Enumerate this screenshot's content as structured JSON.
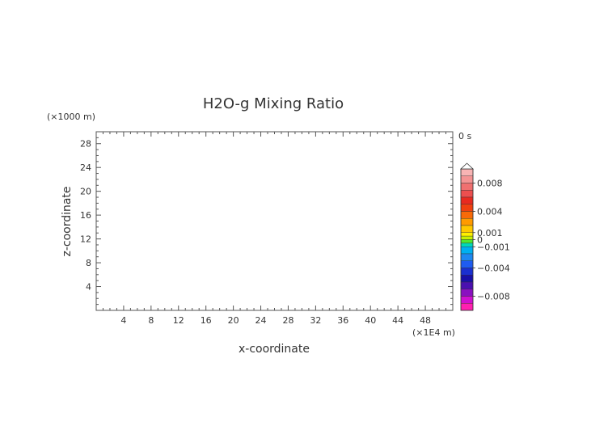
{
  "chart_data": {
    "type": "heatmap",
    "title": "H2O-g Mixing Ratio",
    "xlabel": "x-coordinate",
    "ylabel": "z-coordinate",
    "x_unit": "(×1E4 m)",
    "y_unit": "(×1000 m)",
    "time_label": "0 s",
    "xlim": [
      0,
      52
    ],
    "ylim": [
      0,
      30
    ],
    "x_ticks": [
      4,
      8,
      12,
      16,
      20,
      24,
      28,
      32,
      36,
      40,
      44,
      48
    ],
    "x_tick_labels": [
      "4",
      "8",
      "12",
      "16",
      "20",
      "24",
      "28",
      "32",
      "36",
      "40",
      "44",
      "48"
    ],
    "y_ticks": [
      4,
      8,
      12,
      16,
      20,
      24,
      28
    ],
    "y_tick_labels": [
      "4",
      "8",
      "12",
      "16",
      "20",
      "24",
      "28"
    ],
    "grid": false,
    "field_values": [],
    "colorbar": {
      "min": -0.01,
      "max": 0.01,
      "labels": [
        {
          "value": 0.008,
          "text": "0.008"
        },
        {
          "value": 0.004,
          "text": "0.004"
        },
        {
          "value": 0.001,
          "text": "0.001"
        },
        {
          "value": 0,
          "text": "0"
        },
        {
          "value": -0.001,
          "text": "−0.001"
        },
        {
          "value": -0.004,
          "text": "−0.004"
        },
        {
          "value": -0.008,
          "text": "−0.008"
        }
      ],
      "levels": [
        {
          "from": 0.009,
          "to": 0.01,
          "color": "#f8b4b4"
        },
        {
          "from": 0.008,
          "to": 0.009,
          "color": "#f49494"
        },
        {
          "from": 0.007,
          "to": 0.008,
          "color": "#f07070"
        },
        {
          "from": 0.006,
          "to": 0.007,
          "color": "#ec4f4f"
        },
        {
          "from": 0.005,
          "to": 0.006,
          "color": "#e82a20"
        },
        {
          "from": 0.004,
          "to": 0.005,
          "color": "#f04010"
        },
        {
          "from": 0.003,
          "to": 0.004,
          "color": "#f86a08"
        },
        {
          "from": 0.002,
          "to": 0.003,
          "color": "#ff9a00"
        },
        {
          "from": 0.001,
          "to": 0.002,
          "color": "#ffc800"
        },
        {
          "from": 0.0005,
          "to": 0.001,
          "color": "#fff000"
        },
        {
          "from": 0,
          "to": 0.0005,
          "color": "#c8f000"
        },
        {
          "from": -0.0005,
          "to": 0,
          "color": "#50e830"
        },
        {
          "from": -0.001,
          "to": -0.0005,
          "color": "#00d8b8"
        },
        {
          "from": -0.002,
          "to": -0.001,
          "color": "#00b0f0"
        },
        {
          "from": -0.003,
          "to": -0.002,
          "color": "#1e88f0"
        },
        {
          "from": -0.004,
          "to": -0.003,
          "color": "#1f5cf0"
        },
        {
          "from": -0.005,
          "to": -0.004,
          "color": "#1a30d0"
        },
        {
          "from": -0.006,
          "to": -0.005,
          "color": "#1810a8"
        },
        {
          "from": -0.007,
          "to": -0.006,
          "color": "#4a10b0"
        },
        {
          "from": -0.008,
          "to": -0.007,
          "color": "#8a10c0"
        },
        {
          "from": -0.009,
          "to": -0.008,
          "color": "#d010d0"
        },
        {
          "from": -0.01,
          "to": -0.009,
          "color": "#ff20b0"
        }
      ]
    }
  }
}
